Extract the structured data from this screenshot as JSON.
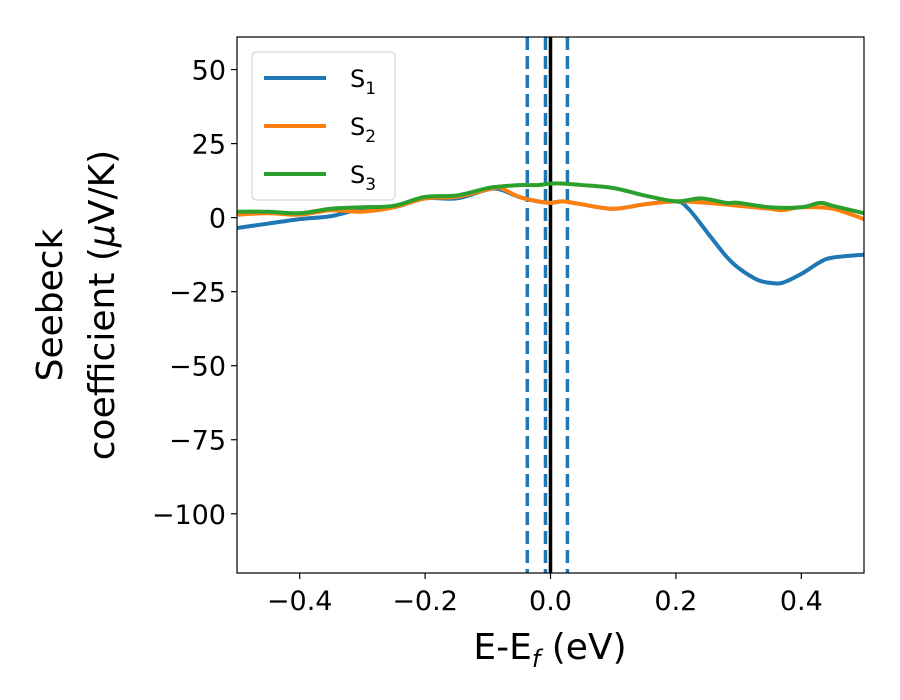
{
  "chart_data": {
    "type": "line",
    "xlabel": "E-E",
    "xlabel_sub": "f",
    "xlabel_unit": "(eV)",
    "ylabel_line1": "Seebeck",
    "ylabel_line2": "coefficient  (",
    "ylabel_mu": "μ",
    "ylabel_unit": "V/K)",
    "xlim": [
      -0.5,
      0.5
    ],
    "ylim": [
      -120,
      61
    ],
    "xticks": [
      -0.4,
      -0.2,
      0.0,
      0.2,
      0.4
    ],
    "xtick_labels": [
      "−0.4",
      "−0.2",
      "0.0",
      "0.2",
      "0.4"
    ],
    "yticks": [
      50,
      25,
      0,
      -25,
      -50,
      -75,
      -100
    ],
    "ytick_labels": [
      "50",
      "25",
      "0",
      "−25",
      "−50",
      "−75",
      "−100"
    ],
    "grid": false,
    "legend_position": "top-left",
    "vlines": [
      {
        "x": -0.037,
        "style": "dashed",
        "color": "#1f77b4"
      },
      {
        "x": -0.008,
        "style": "dashed",
        "color": "#1f77b4"
      },
      {
        "x": 0.027,
        "style": "dashed",
        "color": "#1f77b4"
      },
      {
        "x": 0.0,
        "style": "solid",
        "color": "#000000"
      }
    ],
    "series": [
      {
        "name": "S",
        "sub": "1",
        "color": "#1f77b4",
        "x": [
          -0.5,
          -0.45,
          -0.4,
          -0.35,
          -0.3,
          -0.25,
          -0.2,
          -0.15,
          -0.1,
          -0.08,
          -0.05,
          -0.02,
          0.0,
          0.02,
          0.05,
          0.1,
          0.15,
          0.2,
          0.22,
          0.25,
          0.28,
          0.3,
          0.33,
          0.35,
          0.37,
          0.4,
          0.43,
          0.45,
          0.5
        ],
        "y": [
          -3.5,
          -2,
          -0.5,
          0.5,
          3,
          3.5,
          6.5,
          6.5,
          9.5,
          9.5,
          7,
          5.5,
          5,
          5.5,
          4.5,
          3,
          4.5,
          5.5,
          3,
          -5,
          -13,
          -17,
          -21,
          -22,
          -22,
          -19,
          -15,
          -13.5,
          -12.5
        ]
      },
      {
        "name": "S",
        "sub": "2",
        "color": "#ff7f0e",
        "x": [
          -0.5,
          -0.45,
          -0.4,
          -0.35,
          -0.3,
          -0.25,
          -0.2,
          -0.15,
          -0.1,
          -0.08,
          -0.05,
          -0.02,
          0.0,
          0.02,
          0.05,
          0.1,
          0.15,
          0.2,
          0.25,
          0.3,
          0.35,
          0.37,
          0.4,
          0.45,
          0.5
        ],
        "y": [
          1,
          1.5,
          1,
          2.5,
          2,
          3.5,
          6.5,
          7,
          9.5,
          10,
          7,
          5.5,
          5,
          5.5,
          4.5,
          3,
          4.5,
          5.5,
          5,
          4,
          3,
          2.5,
          3.5,
          3,
          -0.5
        ]
      },
      {
        "name": "S",
        "sub": "3",
        "color": "#2ca02c",
        "x": [
          -0.5,
          -0.45,
          -0.4,
          -0.35,
          -0.3,
          -0.25,
          -0.2,
          -0.15,
          -0.1,
          -0.08,
          -0.05,
          -0.02,
          0.0,
          0.02,
          0.05,
          0.1,
          0.15,
          0.2,
          0.24,
          0.28,
          0.3,
          0.35,
          0.4,
          0.43,
          0.45,
          0.5
        ],
        "y": [
          2,
          2,
          1.5,
          3,
          3.5,
          4,
          7,
          7.5,
          10,
          10.5,
          11,
          11,
          11.5,
          11.5,
          11,
          10,
          7.5,
          5.5,
          6.5,
          5,
          5,
          3.5,
          3.5,
          5,
          4,
          1.5
        ]
      }
    ]
  }
}
